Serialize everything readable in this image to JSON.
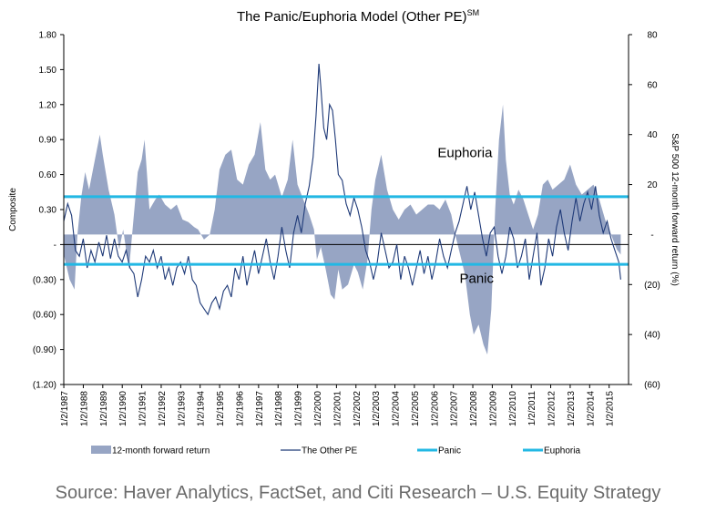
{
  "chart_data": {
    "type": "area",
    "title": "The Panic/Euphoria Model (Other PE)",
    "title_superscript": "SM",
    "ylabel_left": "Composite",
    "ylabel_right": "S&P 500 12-month forward return (%)",
    "ylim_left": [
      -1.2,
      1.8
    ],
    "ylim_right": [
      -60,
      80
    ],
    "yticks_left": [
      {
        "value": 1.8,
        "label": "1.80"
      },
      {
        "value": 1.5,
        "label": "1.50"
      },
      {
        "value": 1.2,
        "label": "1.20"
      },
      {
        "value": 0.9,
        "label": "0.90"
      },
      {
        "value": 0.6,
        "label": "0.60"
      },
      {
        "value": 0.3,
        "label": "0.30"
      },
      {
        "value": 0.0,
        "label": "-"
      },
      {
        "value": -0.3,
        "label": "(0.30)"
      },
      {
        "value": -0.6,
        "label": "(0.60)"
      },
      {
        "value": -0.9,
        "label": "(0.90)"
      },
      {
        "value": -1.2,
        "label": "(1.20)"
      }
    ],
    "yticks_right": [
      {
        "value": 80,
        "label": "80"
      },
      {
        "value": 60,
        "label": "60"
      },
      {
        "value": 40,
        "label": "40"
      },
      {
        "value": 20,
        "label": "20"
      },
      {
        "value": 0,
        "label": "-"
      },
      {
        "value": -20,
        "label": "(20)"
      },
      {
        "value": -40,
        "label": "(40)"
      },
      {
        "value": -60,
        "label": "(60)"
      }
    ],
    "xlim": [
      1987.0,
      2016.0
    ],
    "xticks": [
      "1/2/1987",
      "1/2/1988",
      "1/2/1989",
      "1/2/1990",
      "1/2/1991",
      "1/2/1992",
      "1/2/1993",
      "1/2/1994",
      "1/2/1995",
      "1/2/1996",
      "1/2/1997",
      "1/2/1998",
      "1/2/1999",
      "1/2/2000",
      "1/2/2001",
      "1/2/2002",
      "1/2/2003",
      "1/2/2004",
      "1/2/2005",
      "1/2/2006",
      "1/2/2007",
      "1/2/2008",
      "1/2/2009",
      "1/2/2010",
      "1/2/2011",
      "1/2/2012",
      "1/2/2013",
      "1/2/2014",
      "1/2/2015"
    ],
    "thresholds": [
      {
        "name": "Panic",
        "value": -0.17,
        "color": "#22b8e4"
      },
      {
        "name": "Euphoria",
        "value": 0.41,
        "color": "#22b8e4"
      }
    ],
    "annotations": [
      {
        "text": "Euphoria",
        "x": 2007.6,
        "y": 0.75
      },
      {
        "text": "Panic",
        "x": 2008.2,
        "y": -0.33
      }
    ],
    "series": [
      {
        "name": "12-month forward return",
        "axis": "right",
        "color": "#97a5c4",
        "points": [
          [
            1987.0,
            -8
          ],
          [
            1987.3,
            -18
          ],
          [
            1987.55,
            -22
          ],
          [
            1987.7,
            0
          ],
          [
            1987.9,
            15
          ],
          [
            1988.1,
            25
          ],
          [
            1988.3,
            18
          ],
          [
            1988.6,
            30
          ],
          [
            1988.85,
            40
          ],
          [
            1989.0,
            32
          ],
          [
            1989.3,
            18
          ],
          [
            1989.6,
            8
          ],
          [
            1989.85,
            -6
          ],
          [
            1990.05,
            2
          ],
          [
            1990.35,
            -14
          ],
          [
            1990.6,
            8
          ],
          [
            1990.8,
            25
          ],
          [
            1991.0,
            30
          ],
          [
            1991.15,
            38
          ],
          [
            1991.4,
            10
          ],
          [
            1991.7,
            14
          ],
          [
            1991.9,
            16
          ],
          [
            1992.2,
            12
          ],
          [
            1992.5,
            10
          ],
          [
            1992.8,
            12
          ],
          [
            1993.1,
            6
          ],
          [
            1993.4,
            5
          ],
          [
            1993.7,
            3
          ],
          [
            1993.9,
            2
          ],
          [
            1994.2,
            -2
          ],
          [
            1994.5,
            0
          ],
          [
            1994.75,
            10
          ],
          [
            1995.0,
            26
          ],
          [
            1995.3,
            32
          ],
          [
            1995.6,
            34
          ],
          [
            1995.9,
            22
          ],
          [
            1996.2,
            20
          ],
          [
            1996.5,
            28
          ],
          [
            1996.8,
            32
          ],
          [
            1997.1,
            45
          ],
          [
            1997.35,
            26
          ],
          [
            1997.6,
            22
          ],
          [
            1997.85,
            24
          ],
          [
            1998.2,
            15
          ],
          [
            1998.5,
            22
          ],
          [
            1998.75,
            38
          ],
          [
            1999.0,
            20
          ],
          [
            1999.3,
            14
          ],
          [
            1999.6,
            8
          ],
          [
            1999.85,
            2
          ],
          [
            2000.0,
            -10
          ],
          [
            2000.2,
            -5
          ],
          [
            2000.45,
            -14
          ],
          [
            2000.7,
            -24
          ],
          [
            2000.9,
            -26
          ],
          [
            2001.1,
            -14
          ],
          [
            2001.3,
            -22
          ],
          [
            2001.6,
            -20
          ],
          [
            2001.9,
            -12
          ],
          [
            2002.1,
            -15
          ],
          [
            2002.35,
            -22
          ],
          [
            2002.6,
            -10
          ],
          [
            2002.8,
            10
          ],
          [
            2003.0,
            22
          ],
          [
            2003.3,
            32
          ],
          [
            2003.6,
            18
          ],
          [
            2003.9,
            10
          ],
          [
            2004.2,
            6
          ],
          [
            2004.5,
            10
          ],
          [
            2004.8,
            12
          ],
          [
            2005.1,
            8
          ],
          [
            2005.4,
            10
          ],
          [
            2005.7,
            12
          ],
          [
            2006.0,
            12
          ],
          [
            2006.3,
            10
          ],
          [
            2006.6,
            14
          ],
          [
            2006.9,
            8
          ],
          [
            2007.1,
            0
          ],
          [
            2007.35,
            -8
          ],
          [
            2007.6,
            -16
          ],
          [
            2007.85,
            -32
          ],
          [
            2008.05,
            -40
          ],
          [
            2008.3,
            -36
          ],
          [
            2008.55,
            -44
          ],
          [
            2008.75,
            -48
          ],
          [
            2008.95,
            -30
          ],
          [
            2009.15,
            10
          ],
          [
            2009.35,
            38
          ],
          [
            2009.55,
            52
          ],
          [
            2009.7,
            30
          ],
          [
            2009.9,
            16
          ],
          [
            2010.1,
            12
          ],
          [
            2010.35,
            18
          ],
          [
            2010.6,
            14
          ],
          [
            2010.85,
            8
          ],
          [
            2011.1,
            2
          ],
          [
            2011.35,
            8
          ],
          [
            2011.6,
            20
          ],
          [
            2011.85,
            22
          ],
          [
            2012.1,
            18
          ],
          [
            2012.4,
            20
          ],
          [
            2012.7,
            22
          ],
          [
            2013.0,
            28
          ],
          [
            2013.3,
            20
          ],
          [
            2013.6,
            16
          ],
          [
            2013.9,
            18
          ],
          [
            2014.2,
            20
          ],
          [
            2014.5,
            14
          ],
          [
            2014.8,
            6
          ],
          [
            2015.1,
            0
          ],
          [
            2015.4,
            -6
          ],
          [
            2015.6,
            -8
          ]
        ]
      },
      {
        "name": "The Other PE",
        "axis": "left",
        "color": "#1f3a78",
        "points": [
          [
            1987.0,
            0.2
          ],
          [
            1987.2,
            0.35
          ],
          [
            1987.4,
            0.25
          ],
          [
            1987.6,
            -0.05
          ],
          [
            1987.8,
            -0.1
          ],
          [
            1988.0,
            0.05
          ],
          [
            1988.2,
            -0.2
          ],
          [
            1988.4,
            -0.05
          ],
          [
            1988.6,
            -0.15
          ],
          [
            1988.8,
            0.02
          ],
          [
            1989.0,
            -0.1
          ],
          [
            1989.2,
            0.08
          ],
          [
            1989.4,
            -0.12
          ],
          [
            1989.6,
            0.05
          ],
          [
            1989.8,
            -0.1
          ],
          [
            1990.0,
            -0.15
          ],
          [
            1990.2,
            -0.05
          ],
          [
            1990.4,
            -0.2
          ],
          [
            1990.6,
            -0.25
          ],
          [
            1990.8,
            -0.45
          ],
          [
            1991.0,
            -0.3
          ],
          [
            1991.2,
            -0.1
          ],
          [
            1991.4,
            -0.15
          ],
          [
            1991.6,
            -0.05
          ],
          [
            1991.8,
            -0.2
          ],
          [
            1992.0,
            -0.1
          ],
          [
            1992.2,
            -0.3
          ],
          [
            1992.4,
            -0.2
          ],
          [
            1992.6,
            -0.35
          ],
          [
            1992.8,
            -0.2
          ],
          [
            1993.0,
            -0.15
          ],
          [
            1993.2,
            -0.25
          ],
          [
            1993.4,
            -0.1
          ],
          [
            1993.6,
            -0.3
          ],
          [
            1993.8,
            -0.35
          ],
          [
            1994.0,
            -0.5
          ],
          [
            1994.2,
            -0.55
          ],
          [
            1994.4,
            -0.6
          ],
          [
            1994.6,
            -0.5
          ],
          [
            1994.8,
            -0.45
          ],
          [
            1995.0,
            -0.55
          ],
          [
            1995.2,
            -0.4
          ],
          [
            1995.4,
            -0.35
          ],
          [
            1995.6,
            -0.45
          ],
          [
            1995.8,
            -0.2
          ],
          [
            1996.0,
            -0.3
          ],
          [
            1996.2,
            -0.1
          ],
          [
            1996.4,
            -0.35
          ],
          [
            1996.6,
            -0.2
          ],
          [
            1996.8,
            -0.05
          ],
          [
            1997.0,
            -0.25
          ],
          [
            1997.2,
            -0.1
          ],
          [
            1997.4,
            0.05
          ],
          [
            1997.6,
            -0.15
          ],
          [
            1997.8,
            -0.3
          ],
          [
            1998.0,
            -0.1
          ],
          [
            1998.2,
            0.15
          ],
          [
            1998.4,
            -0.05
          ],
          [
            1998.6,
            -0.2
          ],
          [
            1998.8,
            0.1
          ],
          [
            1999.0,
            0.25
          ],
          [
            1999.2,
            0.1
          ],
          [
            1999.4,
            0.35
          ],
          [
            1999.6,
            0.5
          ],
          [
            1999.8,
            0.75
          ],
          [
            1999.95,
            1.1
          ],
          [
            2000.1,
            1.55
          ],
          [
            2000.2,
            1.35
          ],
          [
            2000.35,
            1.0
          ],
          [
            2000.5,
            0.9
          ],
          [
            2000.65,
            1.2
          ],
          [
            2000.8,
            1.15
          ],
          [
            2000.95,
            0.9
          ],
          [
            2001.1,
            0.6
          ],
          [
            2001.3,
            0.55
          ],
          [
            2001.5,
            0.35
          ],
          [
            2001.7,
            0.25
          ],
          [
            2001.9,
            0.4
          ],
          [
            2002.1,
            0.3
          ],
          [
            2002.3,
            0.15
          ],
          [
            2002.5,
            -0.05
          ],
          [
            2002.7,
            -0.15
          ],
          [
            2002.9,
            -0.3
          ],
          [
            2003.1,
            -0.15
          ],
          [
            2003.3,
            0.1
          ],
          [
            2003.5,
            -0.05
          ],
          [
            2003.7,
            -0.2
          ],
          [
            2003.9,
            -0.15
          ],
          [
            2004.1,
            0.0
          ],
          [
            2004.3,
            -0.3
          ],
          [
            2004.5,
            -0.1
          ],
          [
            2004.7,
            -0.2
          ],
          [
            2004.9,
            -0.35
          ],
          [
            2005.1,
            -0.2
          ],
          [
            2005.3,
            -0.05
          ],
          [
            2005.5,
            -0.25
          ],
          [
            2005.7,
            -0.1
          ],
          [
            2005.9,
            -0.3
          ],
          [
            2006.1,
            -0.15
          ],
          [
            2006.3,
            0.05
          ],
          [
            2006.5,
            -0.1
          ],
          [
            2006.7,
            -0.2
          ],
          [
            2006.9,
            -0.05
          ],
          [
            2007.1,
            0.1
          ],
          [
            2007.3,
            0.2
          ],
          [
            2007.5,
            0.35
          ],
          [
            2007.7,
            0.5
          ],
          [
            2007.9,
            0.3
          ],
          [
            2008.1,
            0.45
          ],
          [
            2008.3,
            0.25
          ],
          [
            2008.5,
            0.05
          ],
          [
            2008.7,
            -0.1
          ],
          [
            2008.9,
            0.1
          ],
          [
            2009.1,
            0.15
          ],
          [
            2009.3,
            -0.1
          ],
          [
            2009.5,
            -0.25
          ],
          [
            2009.7,
            -0.1
          ],
          [
            2009.9,
            0.15
          ],
          [
            2010.1,
            0.05
          ],
          [
            2010.3,
            -0.2
          ],
          [
            2010.5,
            -0.1
          ],
          [
            2010.7,
            0.05
          ],
          [
            2010.9,
            -0.3
          ],
          [
            2011.1,
            -0.1
          ],
          [
            2011.3,
            0.1
          ],
          [
            2011.5,
            -0.35
          ],
          [
            2011.7,
            -0.2
          ],
          [
            2011.9,
            0.05
          ],
          [
            2012.1,
            -0.1
          ],
          [
            2012.3,
            0.15
          ],
          [
            2012.5,
            0.3
          ],
          [
            2012.7,
            0.1
          ],
          [
            2012.9,
            -0.05
          ],
          [
            2013.1,
            0.2
          ],
          [
            2013.3,
            0.4
          ],
          [
            2013.5,
            0.2
          ],
          [
            2013.7,
            0.35
          ],
          [
            2013.9,
            0.45
          ],
          [
            2014.1,
            0.3
          ],
          [
            2014.3,
            0.5
          ],
          [
            2014.5,
            0.25
          ],
          [
            2014.7,
            0.1
          ],
          [
            2014.9,
            0.2
          ],
          [
            2015.1,
            0.05
          ],
          [
            2015.3,
            -0.05
          ],
          [
            2015.5,
            -0.15
          ],
          [
            2015.6,
            -0.3
          ]
        ]
      }
    ],
    "legend": [
      {
        "name": "12-month forward return",
        "style": "area",
        "color": "#97a5c4"
      },
      {
        "name": "The Other PE",
        "style": "line",
        "color": "#1f3a78"
      },
      {
        "name": "Panic",
        "style": "thick-line",
        "color": "#22b8e4"
      },
      {
        "name": "Euphoria",
        "style": "thick-line",
        "color": "#22b8e4"
      }
    ],
    "legend_position": "bottom"
  },
  "source": "Source: Haver Analytics, FactSet, and Citi Research – U.S. Equity Strategy"
}
